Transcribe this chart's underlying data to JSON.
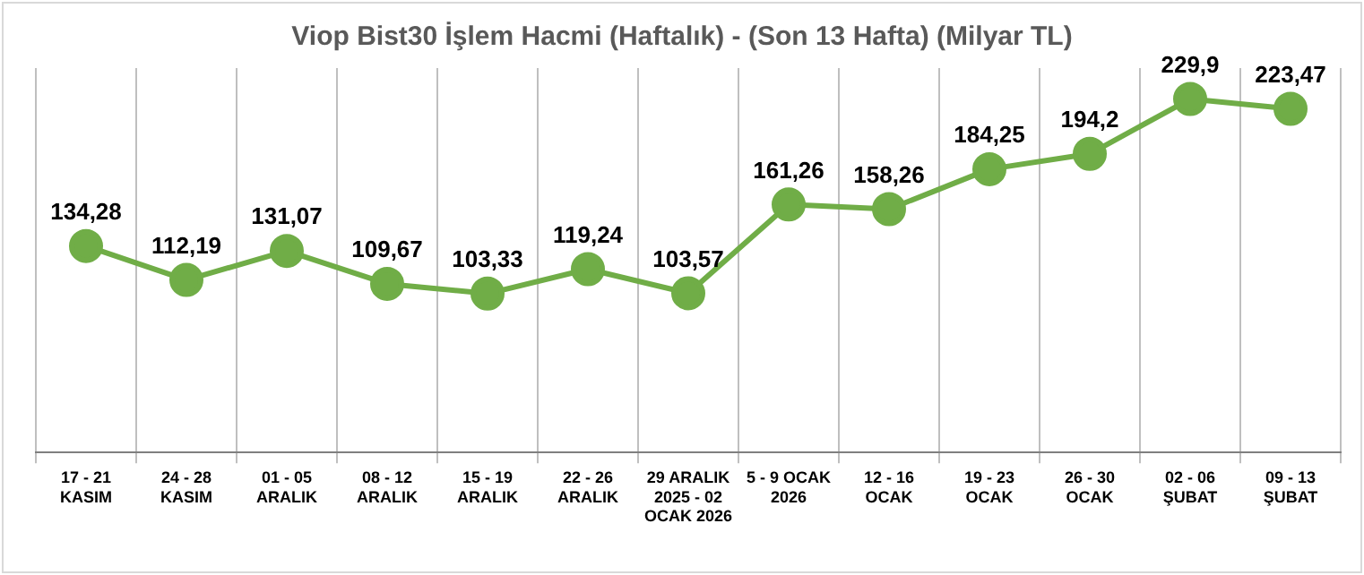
{
  "chart_data": {
    "type": "line",
    "title": "Viop Bist30 İşlem Hacmi (Haftalık) - (Son 13 Hafta) (Milyar TL)",
    "categories": [
      "17 - 21\nKASIM",
      "24 - 28\nKASIM",
      "01 - 05\nARALIK",
      "08 - 12\nARALIK",
      "15 - 19\nARALIK",
      "22 - 26\nARALIK",
      "29 ARALIK\n2025 - 02\nOCAK 2026",
      "5 - 9 OCAK\n2026",
      "12 - 16\nOCAK",
      "19 - 23\nOCAK",
      "26 - 30\nOCAK",
      "02 - 06\nŞUBAT",
      "09 - 13\nŞUBAT"
    ],
    "values": [
      134.28,
      112.19,
      131.07,
      109.67,
      103.33,
      119.24,
      103.57,
      161.26,
      158.26,
      184.25,
      194.2,
      229.9,
      223.47
    ],
    "value_labels": [
      "134,28",
      "112,19",
      "131,07",
      "109,67",
      "103,33",
      "119,24",
      "103,57",
      "161,26",
      "158,26",
      "184,25",
      "194,2",
      "229,9",
      "223,47"
    ],
    "color": "#70ad47",
    "marker": "circle",
    "line_style": "solid",
    "grid": "x",
    "legend": false
  }
}
